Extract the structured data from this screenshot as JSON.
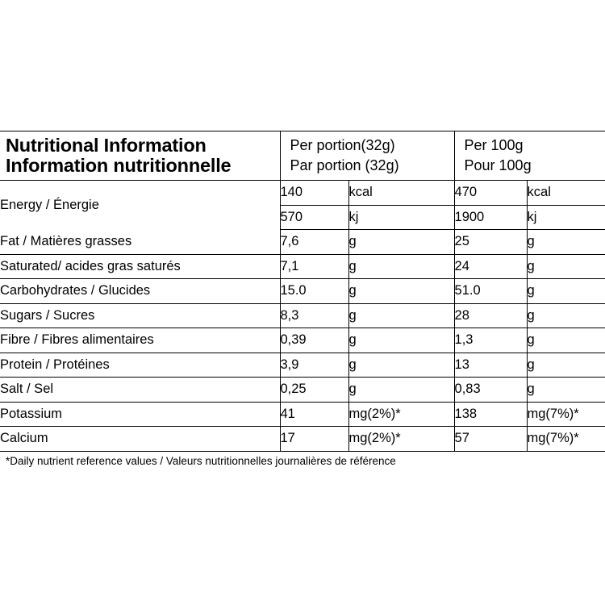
{
  "header": {
    "title_en": "Nutritional Information",
    "title_fr": "Information nutritionnelle",
    "per_portion_en": "Per portion(32g)",
    "per_portion_fr": "Par portion (32g)",
    "per100_en": "Per 100g",
    "per100_fr": "Pour 100g"
  },
  "rows": [
    {
      "name": "Energy / Énergie",
      "portion_value": "140",
      "portion_unit": "kcal",
      "per100_value": "470",
      "per100_unit": "kcal"
    },
    {
      "name": "",
      "portion_value": "570",
      "portion_unit": "kj",
      "per100_value": "1900",
      "per100_unit": "kj"
    },
    {
      "name": "Fat / Matières grasses",
      "portion_value": "7,6",
      "portion_unit": "g",
      "per100_value": "25",
      "per100_unit": "g"
    },
    {
      "name": "Saturated/ acides gras saturés",
      "portion_value": "7,1",
      "portion_unit": "g",
      "per100_value": "24",
      "per100_unit": "g"
    },
    {
      "name": "Carbohydrates / Glucides",
      "portion_value": "15.0",
      "portion_unit": "g",
      "per100_value": "51.0",
      "per100_unit": "g"
    },
    {
      "name": "Sugars / Sucres",
      "portion_value": "8,3",
      "portion_unit": "g",
      "per100_value": "28",
      "per100_unit": "g"
    },
    {
      "name": "Fibre / Fibres alimentaires",
      "portion_value": "0,39",
      "portion_unit": "g",
      "per100_value": "1,3",
      "per100_unit": "g"
    },
    {
      "name": "Protein / Protéines",
      "portion_value": "3,9",
      "portion_unit": "g",
      "per100_value": "13",
      "per100_unit": "g"
    },
    {
      "name": "Salt / Sel",
      "portion_value": "0,25",
      "portion_unit": "g",
      "per100_value": "0,83",
      "per100_unit": "g"
    },
    {
      "name": "Potassium",
      "portion_value": "41",
      "portion_unit": "mg(2%)*",
      "per100_value": "138",
      "per100_unit": "mg(7%)*"
    },
    {
      "name": "Calcium",
      "portion_value": "17",
      "portion_unit": "mg(2%)*",
      "per100_value": "57",
      "per100_unit": "mg(7%)*"
    }
  ],
  "footnote": "*Daily nutrient reference values / Valeurs nutritionnelles journalières de référence"
}
